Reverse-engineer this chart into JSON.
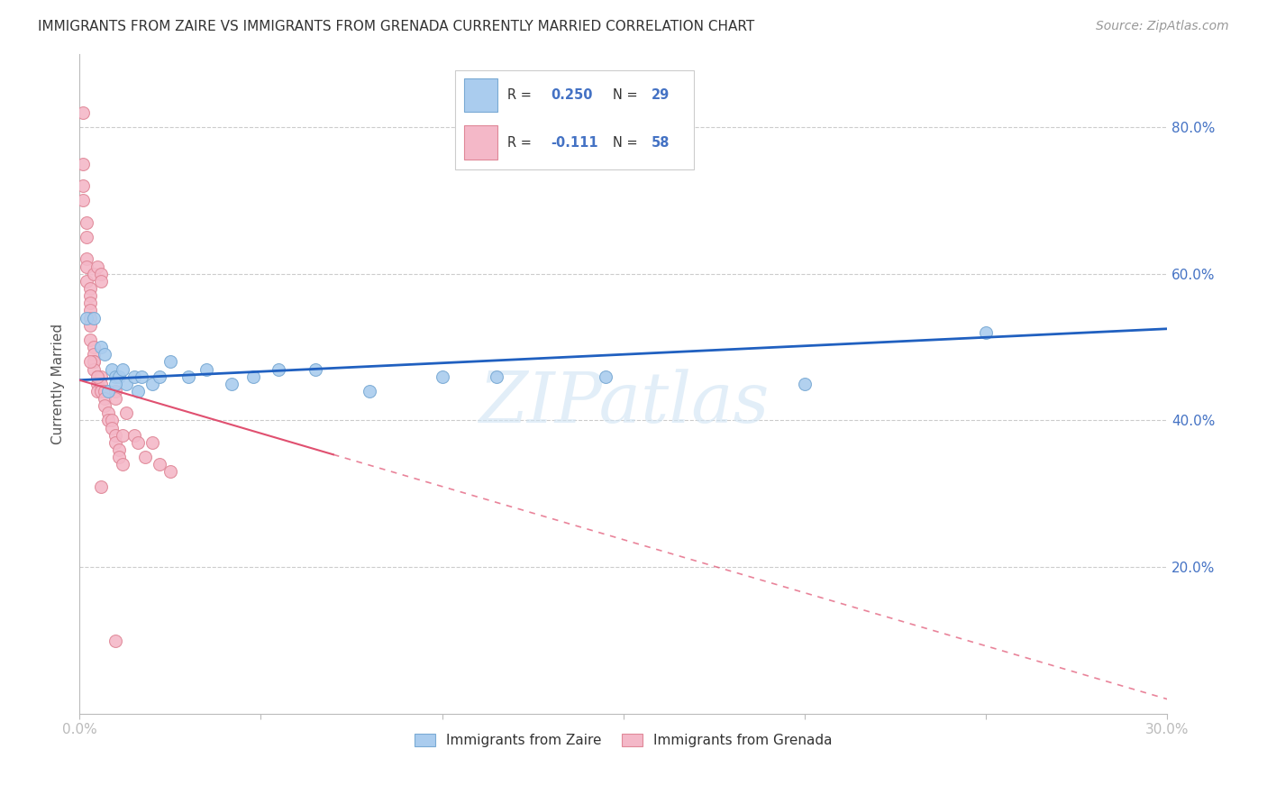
{
  "title": "IMMIGRANTS FROM ZAIRE VS IMMIGRANTS FROM GRENADA CURRENTLY MARRIED CORRELATION CHART",
  "source": "Source: ZipAtlas.com",
  "ylabel": "Currently Married",
  "x_min": 0.0,
  "x_max": 0.3,
  "y_min": 0.0,
  "y_max": 0.9,
  "x_ticks": [
    0.0,
    0.05,
    0.1,
    0.15,
    0.2,
    0.25,
    0.3
  ],
  "y_ticks_right": [
    0.2,
    0.4,
    0.6,
    0.8
  ],
  "y_tick_labels_right": [
    "20.0%",
    "40.0%",
    "60.0%",
    "80.0%"
  ],
  "grid_color": "#cccccc",
  "background_color": "#ffffff",
  "zaire_color": "#aaccee",
  "zaire_edge": "#7aaad4",
  "grenada_color": "#f4b8c8",
  "grenada_edge": "#e08898",
  "zaire_R": 0.25,
  "zaire_N": 29,
  "grenada_R": -0.111,
  "grenada_N": 58,
  "legend_label_zaire": "Immigrants from Zaire",
  "legend_label_grenada": "Immigrants from Grenada",
  "zaire_line_color": "#2060c0",
  "grenada_line_color": "#e05070",
  "zaire_line_x0": 0.0,
  "zaire_line_x1": 0.3,
  "zaire_line_y0": 0.455,
  "zaire_line_y1": 0.525,
  "grenada_line_x0": 0.0,
  "grenada_line_x1": 0.3,
  "grenada_line_y0": 0.455,
  "grenada_line_y1": 0.02,
  "zaire_x": [
    0.002,
    0.004,
    0.006,
    0.007,
    0.009,
    0.01,
    0.011,
    0.012,
    0.013,
    0.015,
    0.017,
    0.02,
    0.022,
    0.025,
    0.03,
    0.035,
    0.042,
    0.048,
    0.055,
    0.065,
    0.08,
    0.1,
    0.115,
    0.145,
    0.2,
    0.25,
    0.008,
    0.01,
    0.016
  ],
  "zaire_y": [
    0.54,
    0.54,
    0.5,
    0.49,
    0.47,
    0.46,
    0.46,
    0.47,
    0.45,
    0.46,
    0.46,
    0.45,
    0.46,
    0.48,
    0.46,
    0.47,
    0.45,
    0.46,
    0.47,
    0.47,
    0.44,
    0.46,
    0.46,
    0.46,
    0.45,
    0.52,
    0.44,
    0.45,
    0.44
  ],
  "grenada_x": [
    0.001,
    0.001,
    0.001,
    0.001,
    0.002,
    0.002,
    0.002,
    0.002,
    0.002,
    0.003,
    0.003,
    0.003,
    0.003,
    0.003,
    0.003,
    0.003,
    0.004,
    0.004,
    0.004,
    0.004,
    0.004,
    0.004,
    0.005,
    0.005,
    0.005,
    0.005,
    0.005,
    0.006,
    0.006,
    0.006,
    0.006,
    0.006,
    0.007,
    0.007,
    0.007,
    0.008,
    0.008,
    0.009,
    0.009,
    0.01,
    0.01,
    0.01,
    0.01,
    0.011,
    0.011,
    0.012,
    0.012,
    0.013,
    0.015,
    0.016,
    0.018,
    0.02,
    0.022,
    0.025,
    0.003,
    0.005,
    0.006,
    0.01
  ],
  "grenada_y": [
    0.82,
    0.75,
    0.72,
    0.7,
    0.67,
    0.65,
    0.62,
    0.61,
    0.59,
    0.58,
    0.57,
    0.56,
    0.55,
    0.54,
    0.53,
    0.51,
    0.5,
    0.49,
    0.48,
    0.48,
    0.47,
    0.6,
    0.46,
    0.46,
    0.45,
    0.44,
    0.61,
    0.6,
    0.59,
    0.46,
    0.45,
    0.44,
    0.44,
    0.43,
    0.42,
    0.41,
    0.4,
    0.4,
    0.39,
    0.38,
    0.37,
    0.44,
    0.43,
    0.36,
    0.35,
    0.38,
    0.34,
    0.41,
    0.38,
    0.37,
    0.35,
    0.37,
    0.34,
    0.33,
    0.48,
    0.46,
    0.31,
    0.1
  ]
}
